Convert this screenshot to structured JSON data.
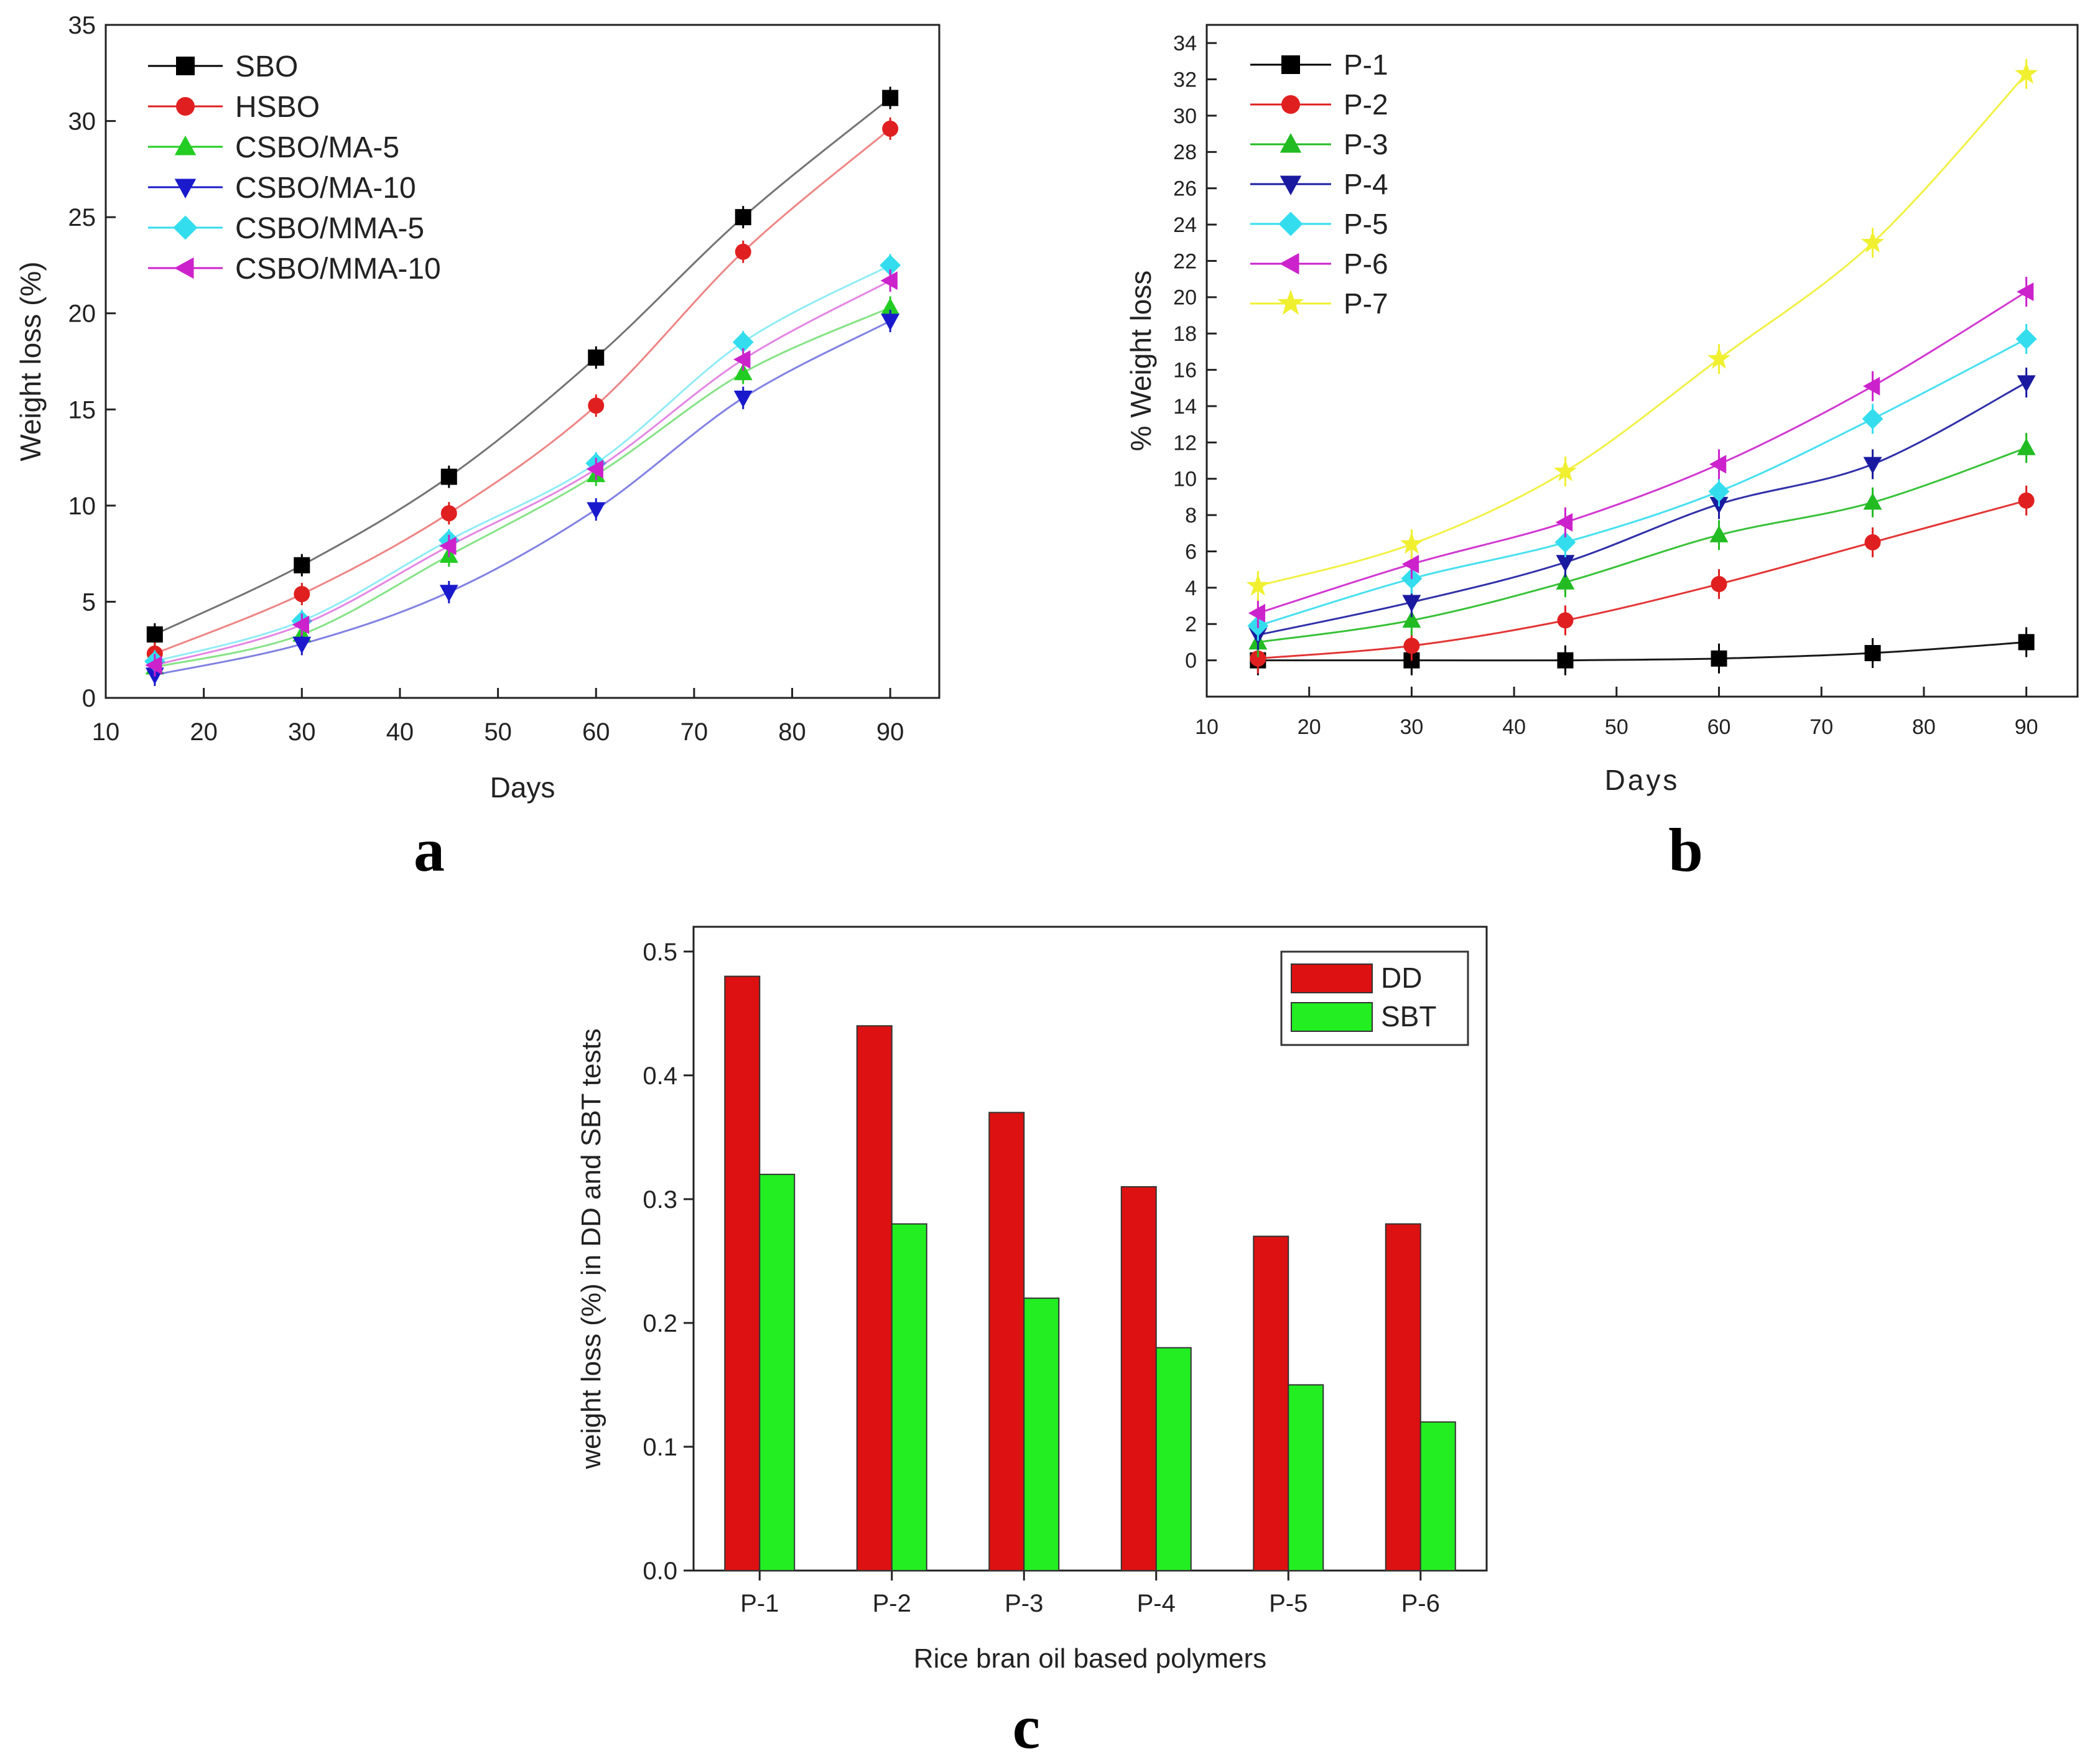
{
  "chart_data": [
    {
      "panel": "a",
      "type": "line",
      "xlabel": "Days",
      "ylabel": "Weight loss (%)",
      "xlim": [
        10,
        95
      ],
      "ylim": [
        0,
        35
      ],
      "xticks": [
        10,
        20,
        30,
        40,
        50,
        60,
        70,
        80,
        90
      ],
      "yticks": [
        0,
        5,
        10,
        15,
        20,
        25,
        30,
        35
      ],
      "x": [
        15,
        30,
        45,
        60,
        75,
        90
      ],
      "legend_position": "top-left",
      "series": [
        {
          "name": "SBO",
          "color": "#000000",
          "marker": "square",
          "values": [
            3.3,
            6.9,
            11.5,
            17.7,
            25.0,
            31.2
          ]
        },
        {
          "name": "HSBO",
          "color": "#e02020",
          "marker": "circle",
          "values": [
            2.3,
            5.4,
            9.6,
            15.2,
            23.2,
            29.6
          ]
        },
        {
          "name": "CSBO/MA-5",
          "color": "#22cc22",
          "marker": "triangle-up",
          "values": [
            1.6,
            3.3,
            7.4,
            11.6,
            16.9,
            20.3
          ]
        },
        {
          "name": "CSBO/MA-10",
          "color": "#1a1acc",
          "marker": "triangle-down",
          "values": [
            1.2,
            2.8,
            5.5,
            9.8,
            15.6,
            19.6
          ]
        },
        {
          "name": "CSBO/MMA-5",
          "color": "#33ddee",
          "marker": "diamond",
          "values": [
            1.9,
            4.0,
            8.2,
            12.2,
            18.5,
            22.5
          ]
        },
        {
          "name": "CSBO/MMA-10",
          "color": "#cc22cc",
          "marker": "triangle-left",
          "values": [
            1.7,
            3.8,
            7.9,
            11.9,
            17.6,
            21.7
          ]
        }
      ]
    },
    {
      "panel": "b",
      "type": "line",
      "xlabel": "Days",
      "ylabel": "% Weight loss",
      "xlim": [
        10,
        95
      ],
      "ylim": [
        -2,
        35
      ],
      "xticks": [
        10,
        20,
        30,
        40,
        50,
        60,
        70,
        80,
        90
      ],
      "yticks": [
        0,
        2,
        4,
        6,
        8,
        10,
        12,
        14,
        16,
        18,
        20,
        22,
        24,
        26,
        28,
        30,
        32,
        34
      ],
      "x": [
        15,
        30,
        45,
        60,
        75,
        90
      ],
      "legend_position": "top-left",
      "series": [
        {
          "name": "P-1",
          "color": "#000000",
          "marker": "square",
          "values": [
            0.0,
            0.0,
            0.0,
            0.1,
            0.4,
            1.0
          ]
        },
        {
          "name": "P-2",
          "color": "#e02020",
          "marker": "circle",
          "values": [
            0.1,
            0.8,
            2.2,
            4.2,
            6.5,
            8.8
          ]
        },
        {
          "name": "P-3",
          "color": "#22bb22",
          "marker": "triangle-up",
          "values": [
            1.0,
            2.2,
            4.3,
            6.9,
            8.7,
            11.7
          ]
        },
        {
          "name": "P-4",
          "color": "#1a1aa0",
          "marker": "triangle-down",
          "values": [
            1.4,
            3.2,
            5.4,
            8.6,
            10.8,
            15.3
          ]
        },
        {
          "name": "P-5",
          "color": "#33ddee",
          "marker": "diamond",
          "values": [
            1.9,
            4.5,
            6.5,
            9.3,
            13.3,
            17.7
          ]
        },
        {
          "name": "P-6",
          "color": "#cc22cc",
          "marker": "triangle-left",
          "values": [
            2.6,
            5.3,
            7.6,
            10.8,
            15.1,
            20.3
          ]
        },
        {
          "name": "P-7",
          "color": "#f0f030",
          "marker": "star",
          "values": [
            4.1,
            6.4,
            10.4,
            16.6,
            23.0,
            32.3
          ]
        }
      ]
    },
    {
      "panel": "c",
      "type": "bar",
      "xlabel": "Rice bran oil based polymers",
      "ylabel": "weight loss (%) in DD and SBT tests",
      "ylim": [
        0,
        0.52
      ],
      "yticks": [
        "0.0",
        "0.1",
        "0.2",
        "0.3",
        "0.4",
        "0.5"
      ],
      "categories": [
        "P-1",
        "P-2",
        "P-3",
        "P-4",
        "P-5",
        "P-6"
      ],
      "legend_position": "top-right",
      "series": [
        {
          "name": "DD",
          "color": "#dd1111",
          "values": [
            0.48,
            0.44,
            0.37,
            0.31,
            0.27,
            0.28
          ]
        },
        {
          "name": "SBT",
          "color": "#22ee22",
          "values": [
            0.32,
            0.28,
            0.22,
            0.18,
            0.15,
            0.12
          ]
        }
      ]
    }
  ],
  "panel_labels": [
    "a",
    "b",
    "c"
  ]
}
